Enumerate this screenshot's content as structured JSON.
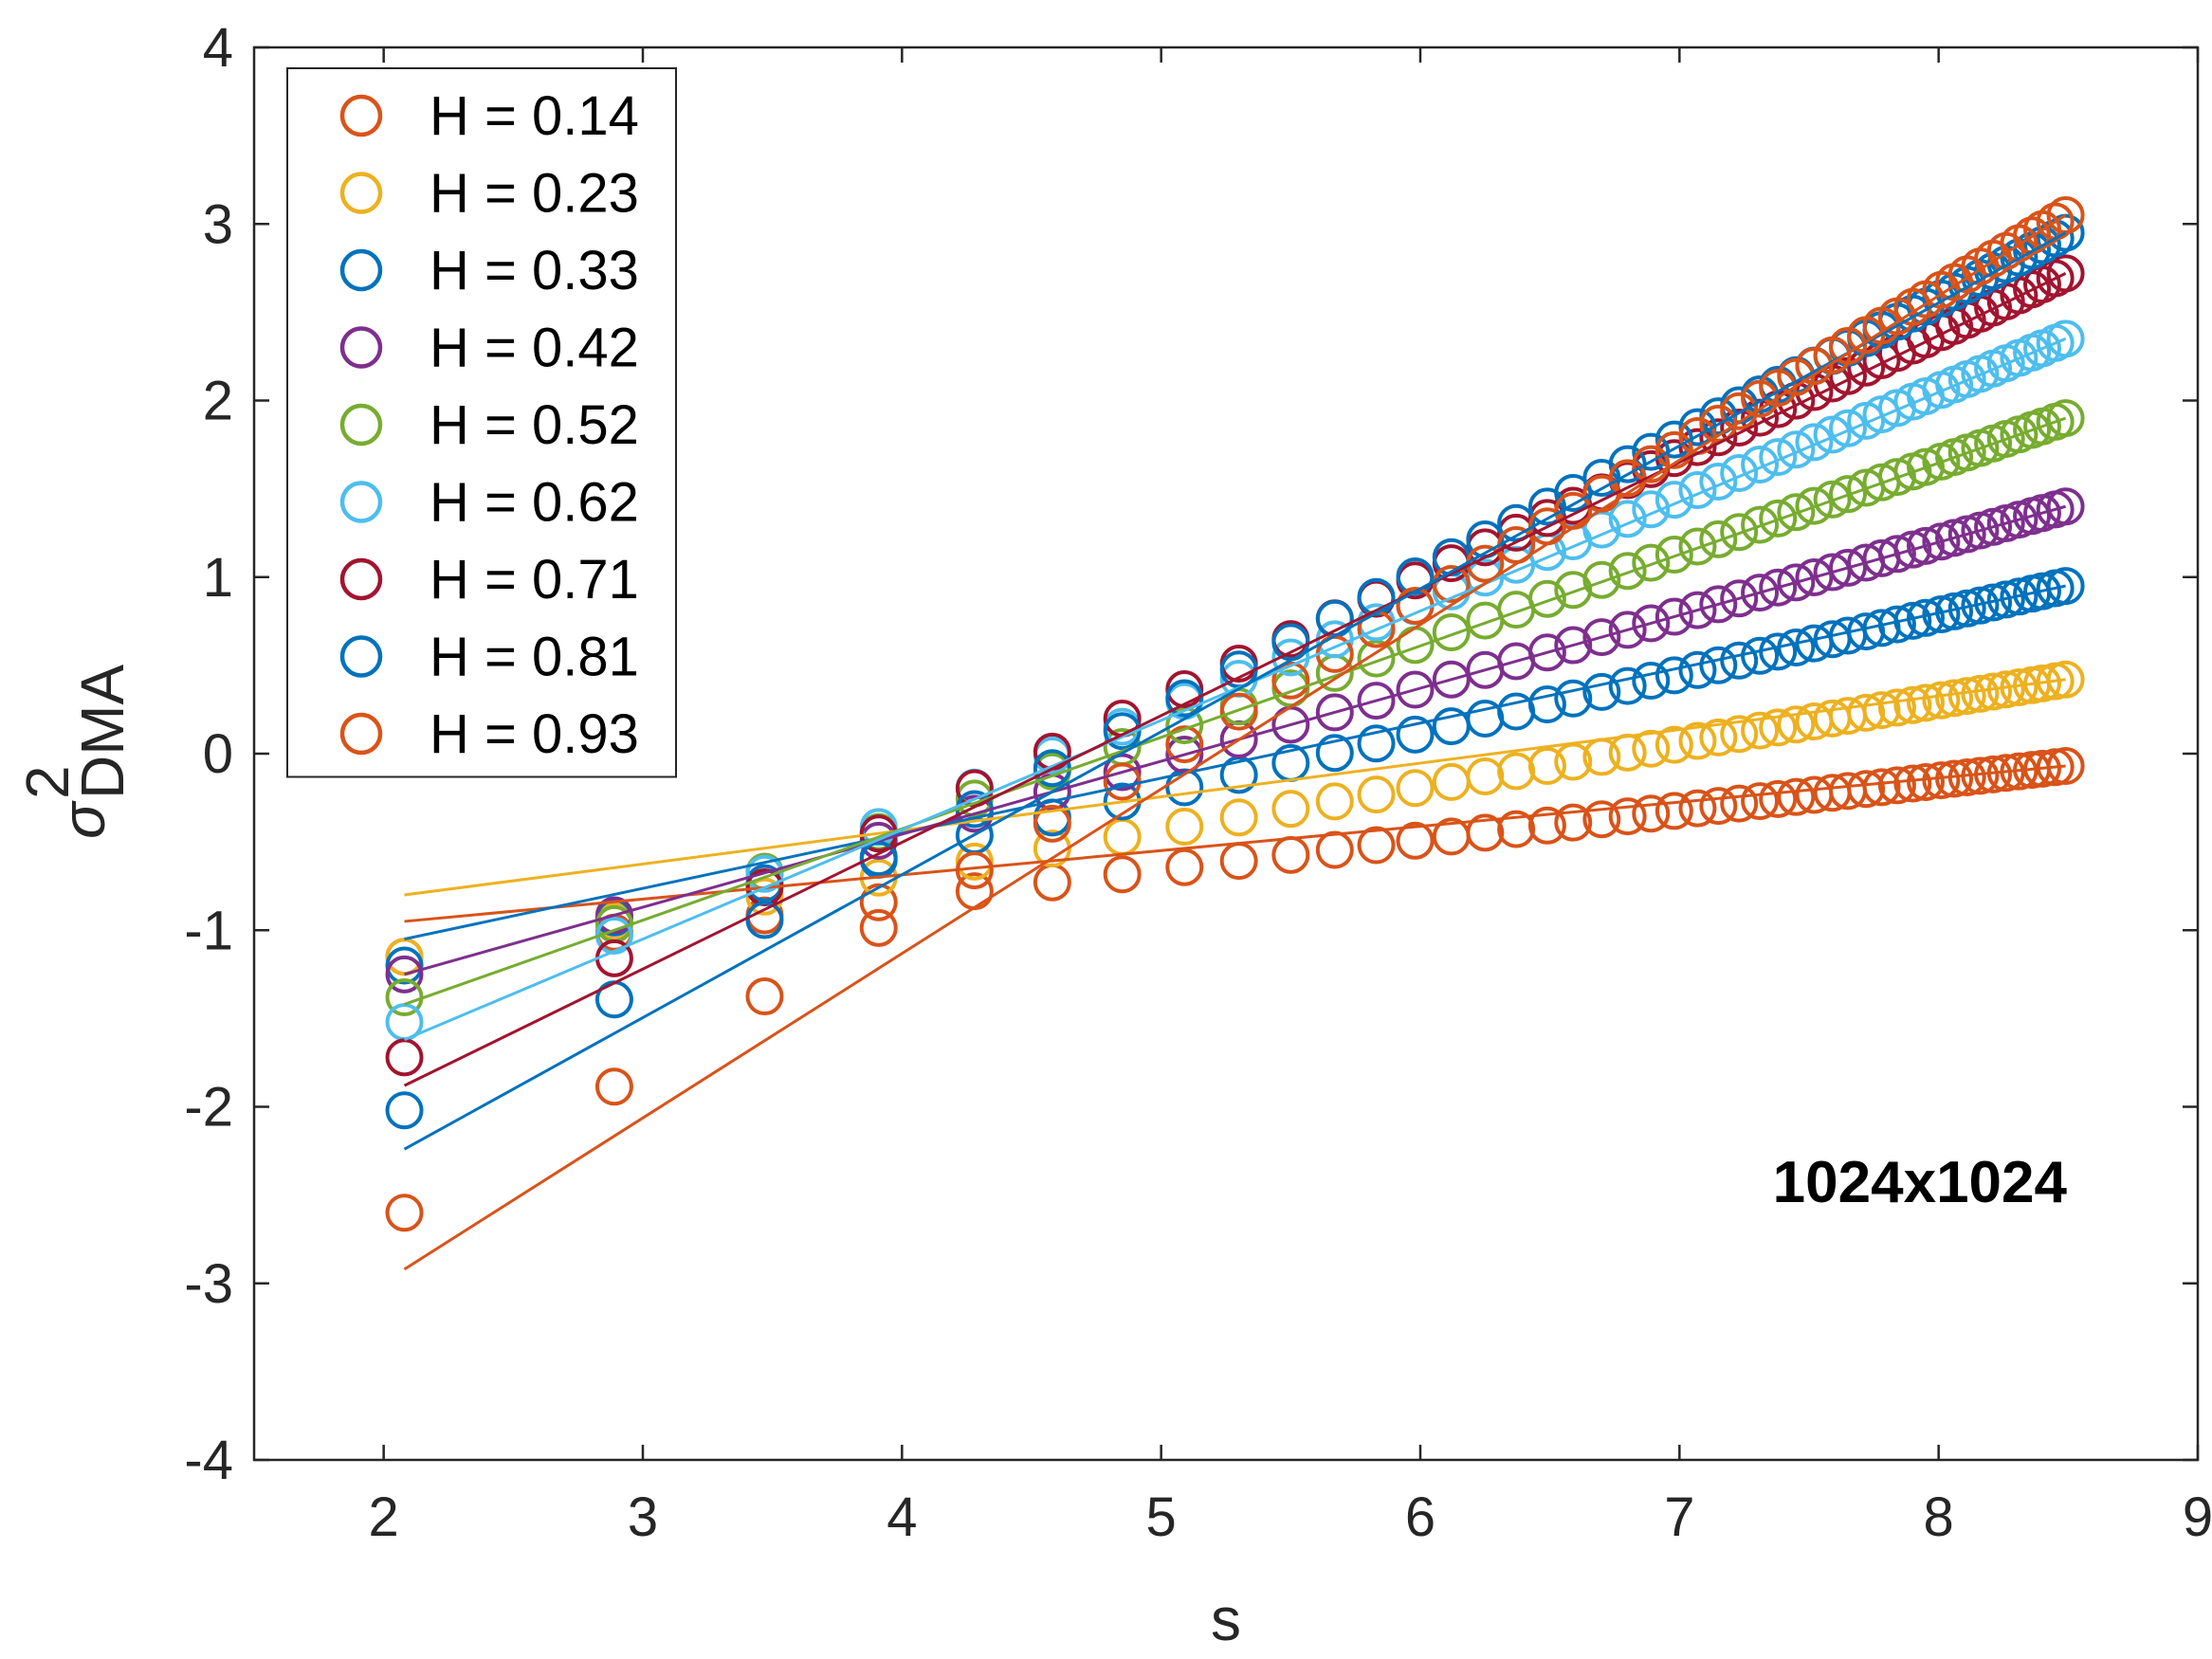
{
  "chart_data": {
    "type": "scatter",
    "title": "",
    "xlabel": "s",
    "ylabel_symbol": "σ",
    "ylabel_superscript": "2",
    "ylabel_subscript": "DMA",
    "xlim": [
      1.5,
      9
    ],
    "ylim": [
      -4,
      4
    ],
    "xticks": [
      2,
      3,
      4,
      5,
      6,
      7,
      8,
      9
    ],
    "yticks": [
      -4,
      -3,
      -2,
      -1,
      0,
      1,
      2,
      3,
      4
    ],
    "xtick_labels": [
      "2",
      "3",
      "4",
      "5",
      "6",
      "7",
      "8",
      "9"
    ],
    "ytick_labels": [
      "-4",
      "-3",
      "-2",
      "-1",
      "0",
      "1",
      "2",
      "3",
      "4"
    ],
    "grid": false,
    "legend_position": "top-left",
    "annotation": "1024x1024",
    "x": [
      2.08,
      2.89,
      3.47,
      3.91,
      4.28,
      4.58,
      4.85,
      5.09,
      5.3,
      5.5,
      5.67,
      5.83,
      5.98,
      6.12,
      6.25,
      6.37,
      6.49,
      6.59,
      6.7,
      6.8,
      6.89,
      6.98,
      7.07,
      7.15,
      7.23,
      7.31,
      7.38,
      7.45,
      7.52,
      7.59,
      7.65,
      7.72,
      7.78,
      7.84,
      7.9,
      7.95,
      8.01,
      8.06,
      8.11,
      8.16,
      8.21,
      8.26,
      8.31,
      8.36,
      8.4,
      8.45,
      8.49
    ],
    "series": [
      {
        "name": "H = 0.14",
        "color": "#D95319",
        "y_start": -1.15,
        "y_end": -0.07,
        "fit": [
          [
            2.08,
            -0.95
          ],
          [
            8.49,
            -0.07
          ]
        ]
      },
      {
        "name": "H = 0.23",
        "color": "#EDB120",
        "y_start": -1.15,
        "y_end": 0.42,
        "fit": [
          [
            2.08,
            -0.8
          ],
          [
            8.49,
            0.42
          ]
        ]
      },
      {
        "name": "H = 0.33",
        "color": "#0072BD",
        "y_start": -1.2,
        "y_end": 0.95,
        "fit": [
          [
            2.08,
            -1.05
          ],
          [
            8.49,
            0.95
          ]
        ]
      },
      {
        "name": "H = 0.42",
        "color": "#7E2F8E",
        "y_start": -1.25,
        "y_end": 1.4,
        "fit": [
          [
            2.08,
            -1.25
          ],
          [
            8.49,
            1.4
          ]
        ]
      },
      {
        "name": "H = 0.52",
        "color": "#77AC30",
        "y_start": -1.38,
        "y_end": 1.9,
        "fit": [
          [
            2.08,
            -1.42
          ],
          [
            8.49,
            1.9
          ]
        ]
      },
      {
        "name": "H = 0.62",
        "color": "#4DBEEE",
        "y_start": -1.52,
        "y_end": 2.35,
        "fit": [
          [
            2.08,
            -1.62
          ],
          [
            8.49,
            2.35
          ]
        ]
      },
      {
        "name": "H = 0.71",
        "color": "#A2142F",
        "y_start": -1.72,
        "y_end": 2.72,
        "fit": [
          [
            2.08,
            -1.88
          ],
          [
            8.49,
            2.72
          ]
        ]
      },
      {
        "name": "H = 0.81",
        "color": "#0072BD",
        "y_start": -2.02,
        "y_end": 2.95,
        "fit": [
          [
            2.08,
            -2.24
          ],
          [
            8.49,
            2.95
          ]
        ]
      },
      {
        "name": "H = 0.93",
        "color": "#D95319",
        "y_start": -2.6,
        "y_end": 3.05,
        "fit": [
          [
            2.08,
            -2.92
          ],
          [
            8.49,
            3.05
          ]
        ]
      }
    ]
  }
}
